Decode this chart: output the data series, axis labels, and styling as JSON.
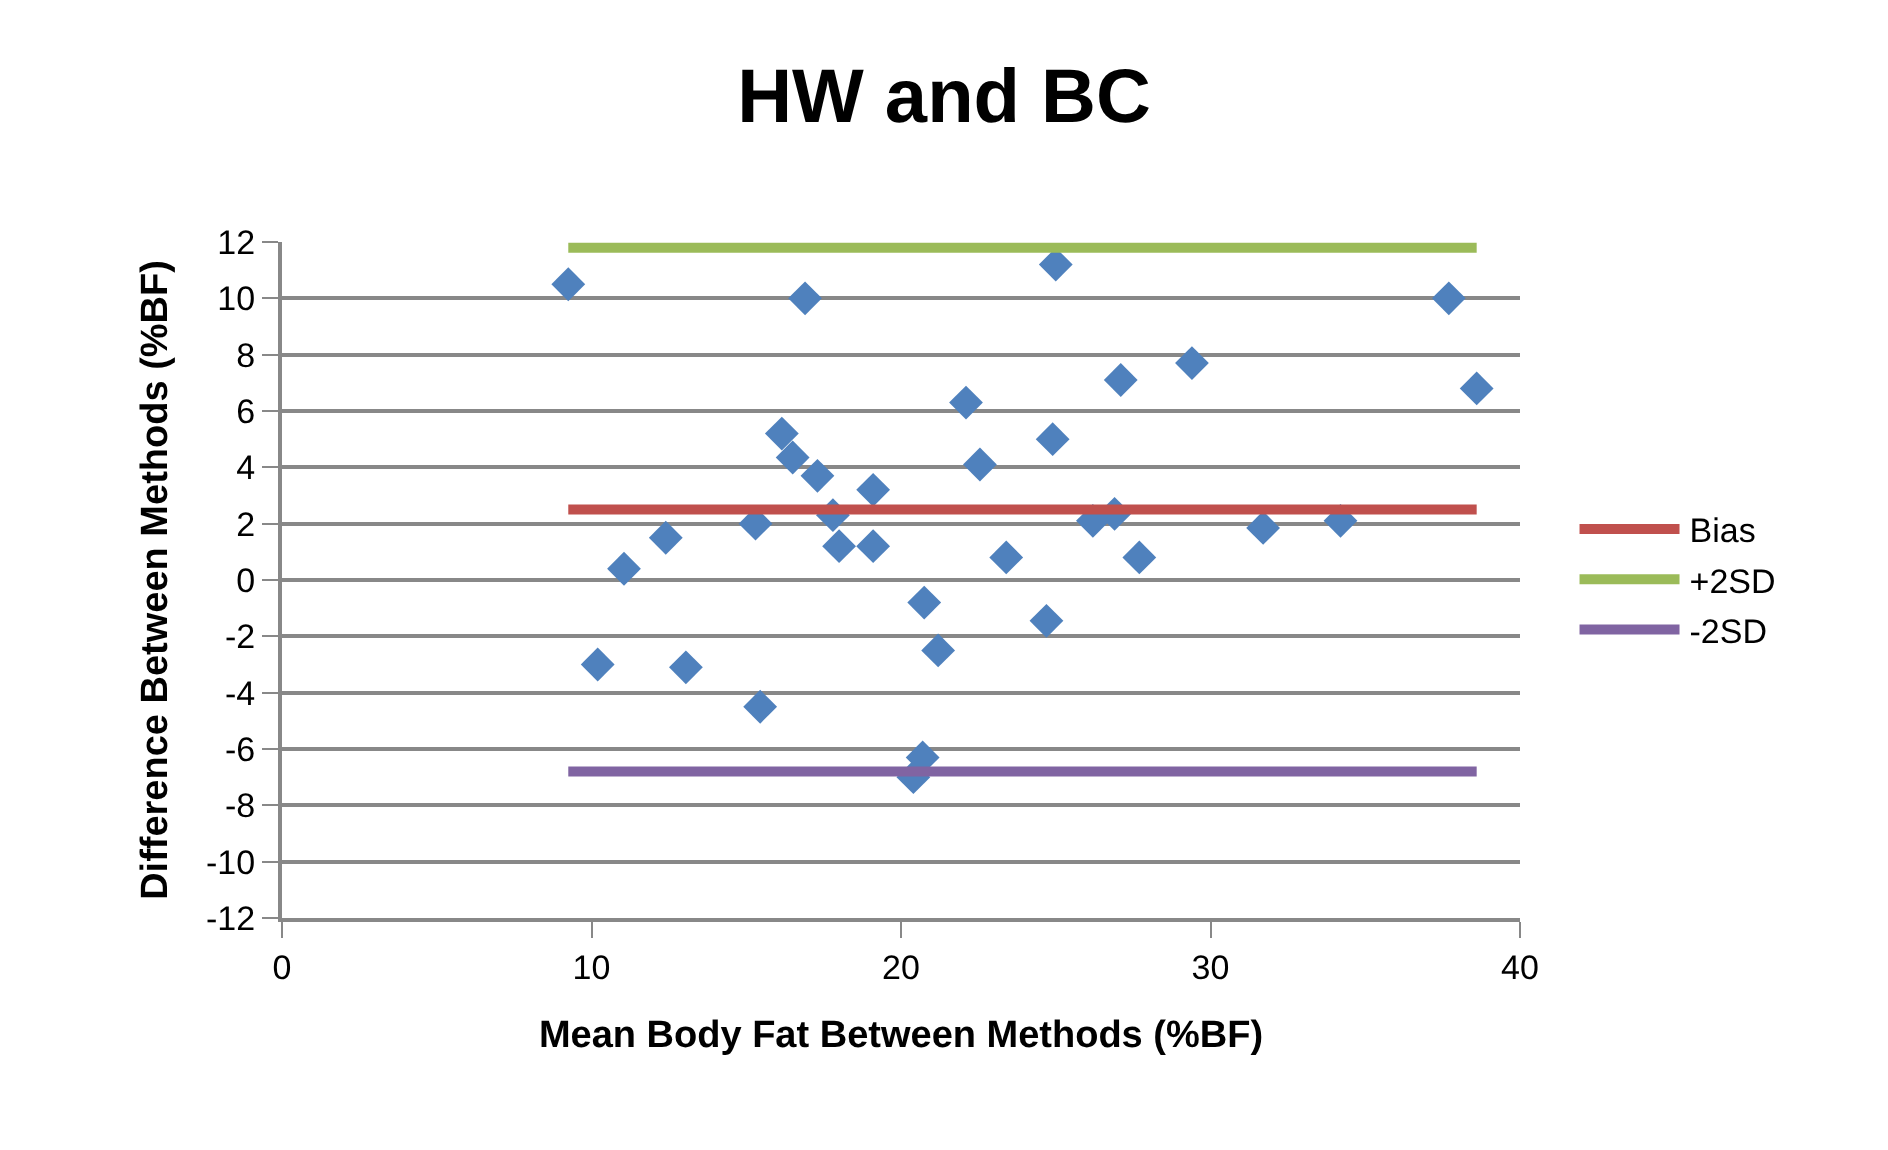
{
  "chart_data": {
    "type": "scatter",
    "title": "HW and BC",
    "xlabel": "Mean Body Fat Between Methods (%BF)",
    "ylabel": "Difference Between Methods (%BF)",
    "xlim": [
      0,
      40
    ],
    "xticks": [
      0,
      10,
      20,
      30,
      40
    ],
    "ylim": [
      -12,
      12
    ],
    "yticks": [
      -12,
      -10,
      -8,
      -6,
      -4,
      -2,
      0,
      2,
      4,
      6,
      8,
      10,
      12
    ],
    "grid": "y",
    "legend": "right",
    "series": [
      {
        "marker": "diamond",
        "color": "#4f81bd",
        "x": [
          9.25,
          10.2,
          11.05,
          12.4,
          13.05,
          15.3,
          15.45,
          16.15,
          16.5,
          16.9,
          17.3,
          17.8,
          18.0,
          19.1,
          19.1,
          20.4,
          20.7,
          20.75,
          21.2,
          22.1,
          22.55,
          23.4,
          24.7,
          24.9,
          25.0,
          26.2,
          26.9,
          27.1,
          27.7,
          29.4,
          31.7,
          34.2,
          37.7,
          38.6
        ],
        "values": [
          10.5,
          -3.0,
          0.4,
          1.5,
          -3.1,
          2.0,
          -4.5,
          5.2,
          4.35,
          10.0,
          3.7,
          2.3,
          1.2,
          3.2,
          1.2,
          -7.0,
          -6.3,
          -0.8,
          -2.5,
          6.3,
          4.1,
          0.8,
          -1.45,
          5.0,
          11.2,
          2.1,
          2.35,
          7.1,
          0.8,
          7.7,
          1.85,
          2.1,
          10.0,
          6.8
        ]
      },
      {
        "type": "line",
        "marker": "none",
        "name": "Bias",
        "color": "#c0504d",
        "x": [
          9.25,
          38.6
        ],
        "values": [
          2.5,
          2.5
        ]
      },
      {
        "type": "line",
        "marker": "none",
        "name": "+2SD",
        "color": "#9bbb59",
        "x": [
          9.25,
          38.6
        ],
        "values": [
          11.8,
          11.8
        ]
      },
      {
        "type": "line",
        "marker": "none",
        "name": "-2SD",
        "color": "#8064a2",
        "x": [
          9.25,
          38.6
        ],
        "values": [
          -6.8,
          -6.8
        ]
      }
    ]
  }
}
